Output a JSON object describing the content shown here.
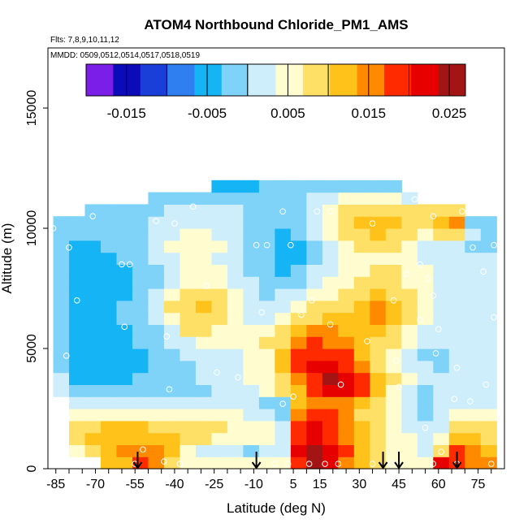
{
  "chart_data": {
    "type": "heatmap",
    "title": "ATOM4 Northbound Chloride_PM1_AMS",
    "flights_text": "Flts: 7,8,9,10,11,12",
    "dates_text": "MMDD: 0509,0512,0514,0517,0518,0519",
    "xlabel": "Latitude (deg N)",
    "ylabel": "Altitude (m)",
    "xlim": [
      -88,
      85
    ],
    "ylim": [
      0,
      17500
    ],
    "x_ticks": [
      "-85",
      "-70",
      "-55",
      "-40",
      "-25",
      "-10",
      "5",
      "15",
      "30",
      "45",
      "60",
      "75"
    ],
    "x_tick_values": [
      -85,
      -70,
      -55,
      -40,
      -25,
      -10,
      5,
      15,
      30,
      45,
      60,
      75
    ],
    "y_ticks": [
      "0",
      "5000",
      "10000",
      "15000"
    ],
    "y_tick_values": [
      0,
      5000,
      10000,
      15000
    ],
    "colorbar": {
      "ticks": [
        "-0.015",
        "-0.005",
        "0.005",
        "0.015",
        "0.025"
      ],
      "tick_values": [
        -0.015,
        -0.005,
        0.005,
        0.015,
        0.025
      ],
      "range": [
        -0.02,
        0.027
      ],
      "colors": [
        "#7B1FE8",
        "#0B0BB8",
        "#1A3FD8",
        "#2F7FF0",
        "#14B4F5",
        "#7FD2F8",
        "#CFEEFB",
        "#FFFDD0",
        "#FFE066",
        "#FFC21A",
        "#FF8A00",
        "#FF2A00",
        "#E60000",
        "#A31515"
      ]
    },
    "arrow_latitudes": [
      -54,
      -9,
      39,
      45,
      67
    ],
    "field_grid": {
      "lat_edges": [
        -86,
        -80,
        -74,
        -68,
        -62,
        -56,
        -50,
        -44,
        -38,
        -32,
        -26,
        -20,
        -14,
        -8,
        -2,
        4,
        10,
        16,
        22,
        28,
        34,
        40,
        46,
        52,
        58,
        64,
        70,
        76,
        82
      ],
      "alt_edges": [
        0,
        500,
        1000,
        1500,
        2000,
        2500,
        3000,
        3500,
        4000,
        4500,
        5000,
        5500,
        6000,
        6500,
        7000,
        7500,
        8000,
        8500,
        9000,
        9500,
        10000,
        10500,
        11000,
        11500,
        12000
      ],
      "values": [
        [
          null,
          null,
          null,
          0.011,
          0.013,
          0.017,
          0.015,
          0.007,
          0.005,
          0.005,
          0.004,
          0.004,
          0.004,
          0.005,
          0.004,
          0.02,
          0.024,
          0.021,
          0.016,
          0.011,
          0.007,
          0.006,
          0.006,
          0.005,
          0.022,
          0.019,
          0.015,
          0.014
        ],
        [
          null,
          0.004,
          0.01,
          0.013,
          0.014,
          0.016,
          0.015,
          0.011,
          0.004,
          0.002,
          0.001,
          0.001,
          0.0,
          0.002,
          0.003,
          0.021,
          0.025,
          0.022,
          0.017,
          0.012,
          0.008,
          0.005,
          0.005,
          0.003,
          0.007,
          0.017,
          0.014,
          0.013
        ],
        [
          null,
          0.009,
          0.012,
          0.013,
          0.013,
          0.013,
          0.012,
          0.012,
          0.009,
          0.007,
          0.006,
          0.006,
          0.006,
          0.005,
          0.002,
          0.019,
          0.022,
          0.02,
          0.016,
          0.012,
          0.008,
          0.005,
          0.004,
          0.002,
          0.005,
          0.013,
          0.012,
          0.01
        ],
        [
          null,
          0.008,
          0.01,
          0.011,
          0.011,
          0.011,
          0.01,
          0.01,
          0.01,
          0.008,
          0.007,
          0.006,
          0.005,
          0.004,
          0.001,
          0.018,
          0.021,
          0.019,
          0.015,
          0.011,
          0.007,
          0.005,
          0.003,
          0.001,
          0.003,
          0.009,
          0.009,
          0.007
        ],
        [
          null,
          0.004,
          0.004,
          0.004,
          0.004,
          0.004,
          0.004,
          0.004,
          0.004,
          0.004,
          0.004,
          0.004,
          0.003,
          0.002,
          0.0,
          0.015,
          0.019,
          0.017,
          0.014,
          0.01,
          0.007,
          0.004,
          0.002,
          0.0,
          0.002,
          0.005,
          0.005,
          0.005
        ],
        [
          null,
          0.002,
          0.002,
          0.002,
          0.002,
          0.002,
          0.002,
          0.003,
          0.003,
          0.003,
          0.003,
          0.003,
          0.002,
          0.0,
          -0.002,
          0.011,
          0.016,
          0.016,
          0.015,
          0.012,
          0.008,
          0.004,
          0.002,
          0.0,
          0.001,
          0.002,
          0.003,
          0.003
        ],
        [
          0.002,
          -0.002,
          -0.003,
          -0.003,
          -0.003,
          -0.002,
          -0.002,
          -0.001,
          -0.001,
          0.0,
          0.001,
          0.002,
          0.003,
          0.005,
          0.009,
          0.013,
          0.019,
          0.022,
          0.023,
          0.017,
          0.011,
          0.006,
          0.003,
          0.0,
          0.001,
          0.002,
          0.002,
          0.002
        ],
        [
          0.001,
          -0.004,
          -0.004,
          -0.004,
          -0.004,
          -0.003,
          -0.002,
          -0.001,
          0.0,
          0.001,
          0.002,
          0.003,
          0.004,
          0.006,
          0.01,
          0.015,
          0.02,
          0.024,
          0.023,
          0.018,
          0.012,
          0.007,
          0.004,
          0.001,
          0.001,
          0.002,
          0.002,
          0.002
        ],
        [
          0.0,
          -0.005,
          -0.005,
          -0.005,
          -0.005,
          -0.004,
          -0.003,
          -0.002,
          -0.001,
          0.001,
          0.002,
          0.003,
          0.004,
          0.006,
          0.011,
          0.017,
          0.021,
          0.022,
          0.02,
          0.015,
          0.01,
          0.006,
          0.003,
          0.001,
          0.0,
          0.001,
          0.002,
          0.002
        ],
        [
          0.0,
          -0.006,
          -0.006,
          -0.006,
          -0.005,
          -0.004,
          -0.002,
          0.0,
          0.002,
          0.003,
          0.003,
          0.003,
          0.004,
          0.006,
          0.012,
          0.017,
          0.019,
          0.019,
          0.017,
          0.013,
          0.009,
          0.006,
          0.003,
          0.0,
          0.0,
          0.001,
          0.001,
          0.002
        ],
        [
          0.0,
          -0.006,
          -0.006,
          -0.006,
          -0.005,
          -0.003,
          -0.001,
          0.001,
          0.003,
          0.004,
          0.004,
          0.004,
          0.005,
          0.007,
          0.01,
          0.015,
          0.017,
          0.016,
          0.014,
          0.012,
          0.009,
          0.007,
          0.004,
          0.001,
          0.001,
          0.001,
          0.001,
          0.002
        ],
        [
          0.0,
          -0.005,
          -0.005,
          -0.005,
          -0.004,
          -0.002,
          0.0,
          0.003,
          0.007,
          0.008,
          0.006,
          0.004,
          0.004,
          0.005,
          0.007,
          0.011,
          0.014,
          0.014,
          0.013,
          0.012,
          0.011,
          0.009,
          0.006,
          0.003,
          0.002,
          0.002,
          0.002,
          0.002
        ],
        [
          0.0,
          -0.005,
          -0.005,
          -0.005,
          -0.003,
          -0.001,
          0.002,
          0.006,
          0.009,
          0.01,
          0.009,
          0.006,
          0.003,
          0.003,
          0.005,
          0.008,
          0.01,
          0.011,
          0.012,
          0.013,
          0.014,
          0.012,
          0.009,
          0.004,
          0.003,
          0.002,
          0.002,
          0.002
        ],
        [
          0.0,
          -0.005,
          -0.005,
          -0.005,
          -0.003,
          -0.001,
          0.002,
          0.007,
          0.01,
          0.011,
          0.01,
          0.006,
          0.003,
          0.002,
          0.003,
          0.005,
          0.007,
          0.008,
          0.01,
          0.012,
          0.014,
          0.013,
          0.01,
          0.005,
          0.003,
          0.002,
          0.002,
          0.003
        ],
        [
          0.0,
          -0.005,
          -0.005,
          -0.005,
          -0.004,
          -0.002,
          0.001,
          0.004,
          0.007,
          0.008,
          0.007,
          0.005,
          0.002,
          0.0,
          0.001,
          0.002,
          0.004,
          0.006,
          0.008,
          0.01,
          0.011,
          0.01,
          0.008,
          0.004,
          0.003,
          0.002,
          0.002,
          0.002
        ],
        [
          0.0,
          -0.006,
          -0.006,
          -0.005,
          -0.004,
          -0.002,
          0.0,
          0.003,
          0.005,
          0.006,
          0.005,
          0.003,
          0.001,
          -0.001,
          -0.003,
          -0.001,
          0.002,
          0.004,
          0.006,
          0.007,
          0.008,
          0.008,
          0.006,
          0.004,
          0.003,
          0.002,
          0.002,
          0.002
        ],
        [
          0.0,
          -0.006,
          -0.006,
          -0.005,
          -0.004,
          -0.002,
          0.0,
          0.002,
          0.004,
          0.005,
          0.004,
          0.002,
          0.0,
          -0.002,
          -0.005,
          -0.003,
          0.001,
          0.003,
          0.005,
          0.006,
          0.007,
          0.007,
          0.005,
          0.004,
          0.002,
          0.002,
          0.002,
          0.002
        ],
        [
          0.0,
          -0.005,
          -0.005,
          -0.004,
          -0.003,
          -0.001,
          0.001,
          0.003,
          0.004,
          0.004,
          0.003,
          0.001,
          -0.001,
          -0.003,
          -0.006,
          -0.004,
          0.0,
          0.003,
          0.005,
          0.006,
          0.006,
          0.006,
          0.004,
          0.003,
          0.002,
          0.001,
          0.001,
          0.001
        ],
        [
          0.0,
          -0.004,
          -0.004,
          -0.003,
          -0.002,
          0.0,
          0.002,
          0.004,
          0.005,
          0.005,
          0.004,
          0.002,
          0.0,
          -0.003,
          -0.006,
          -0.004,
          0.0,
          0.003,
          0.006,
          0.008,
          0.009,
          0.008,
          0.005,
          0.003,
          0.002,
          0.001,
          0.0,
          -0.001
        ],
        [
          0.0,
          -0.003,
          -0.003,
          -0.002,
          -0.001,
          0.0,
          0.002,
          0.003,
          0.004,
          0.004,
          0.003,
          0.002,
          0.0,
          -0.002,
          -0.005,
          -0.003,
          0.001,
          0.004,
          0.007,
          0.01,
          0.011,
          0.01,
          0.007,
          0.005,
          0.007,
          0.009,
          0.001,
          -0.002
        ],
        [
          0.0,
          -0.002,
          -0.002,
          -0.002,
          -0.001,
          0.0,
          0.001,
          0.002,
          0.003,
          0.003,
          0.002,
          0.001,
          0.0,
          -0.001,
          -0.003,
          -0.002,
          0.001,
          0.004,
          0.008,
          0.011,
          0.012,
          0.011,
          0.009,
          0.008,
          0.012,
          0.014,
          0.0,
          -0.002
        ],
        [
          null,
          null,
          -0.002,
          -0.002,
          -0.001,
          0.0,
          0.0,
          0.001,
          0.001,
          0.001,
          0.001,
          0.001,
          0.0,
          0.0,
          -0.001,
          0.0,
          0.002,
          0.004,
          0.008,
          0.01,
          0.01,
          0.009,
          0.008,
          0.007,
          0.009,
          0.01,
          null,
          null
        ],
        [
          null,
          null,
          null,
          null,
          null,
          null,
          -0.002,
          -0.002,
          -0.002,
          -0.002,
          -0.001,
          -0.001,
          -0.001,
          -0.001,
          -0.001,
          0.0,
          0.001,
          0.002,
          0.004,
          0.005,
          0.005,
          0.004,
          0.003,
          null,
          null,
          null,
          null,
          null
        ],
        [
          null,
          null,
          null,
          null,
          null,
          null,
          null,
          null,
          null,
          null,
          -0.004,
          -0.004,
          -0.004,
          -0.003,
          -0.003,
          -0.003,
          -0.002,
          -0.002,
          -0.001,
          -0.001,
          -0.001,
          -0.001,
          null,
          null,
          null,
          null,
          null,
          null
        ]
      ]
    },
    "observations": [
      {
        "x": -86,
        "y": 10000
      },
      {
        "x": -80,
        "y": 9200
      },
      {
        "x": -77,
        "y": 7000
      },
      {
        "x": -81,
        "y": 4700
      },
      {
        "x": -81,
        "y": 2800
      },
      {
        "x": -71,
        "y": 10500
      },
      {
        "x": -60,
        "y": 8500
      },
      {
        "x": -57,
        "y": 8500
      },
      {
        "x": -59,
        "y": 5900
      },
      {
        "x": -47,
        "y": 10300
      },
      {
        "x": -40,
        "y": 10200
      },
      {
        "x": -33,
        "y": 10900
      },
      {
        "x": -28,
        "y": 7600
      },
      {
        "x": -24,
        "y": 4000
      },
      {
        "x": -16,
        "y": 3800
      },
      {
        "x": -43,
        "y": 5500
      },
      {
        "x": -42,
        "y": 3300
      },
      {
        "x": -52,
        "y": 800
      },
      {
        "x": -44,
        "y": 300
      },
      {
        "x": -9,
        "y": 9300
      },
      {
        "x": -5,
        "y": 9300
      },
      {
        "x": -7,
        "y": 6500
      },
      {
        "x": 1,
        "y": 10700
      },
      {
        "x": 4,
        "y": 9300
      },
      {
        "x": 8,
        "y": 6400
      },
      {
        "x": 14,
        "y": 10700
      },
      {
        "x": 19,
        "y": 10700
      },
      {
        "x": 12,
        "y": 7000
      },
      {
        "x": 1,
        "y": 2700
      },
      {
        "x": 5,
        "y": 3000
      },
      {
        "x": 19,
        "y": 6000
      },
      {
        "x": 23,
        "y": 3500
      },
      {
        "x": 33,
        "y": 5300
      },
      {
        "x": 43,
        "y": 7000
      },
      {
        "x": 48,
        "y": 8100
      },
      {
        "x": 45,
        "y": 3400
      },
      {
        "x": 44,
        "y": 4500
      },
      {
        "x": 35,
        "y": 10200
      },
      {
        "x": 51,
        "y": 11200
      },
      {
        "x": 58,
        "y": 10500
      },
      {
        "x": 53,
        "y": 8500
      },
      {
        "x": 56,
        "y": 7900
      },
      {
        "x": 58,
        "y": 7200
      },
      {
        "x": 53,
        "y": 6200
      },
      {
        "x": 59,
        "y": 4800
      },
      {
        "x": 60,
        "y": 5800
      },
      {
        "x": 67,
        "y": 4200
      },
      {
        "x": 69,
        "y": 10700
      },
      {
        "x": 73,
        "y": 9200
      },
      {
        "x": 77,
        "y": 8200
      },
      {
        "x": 81,
        "y": 9300
      },
      {
        "x": 81,
        "y": 6300
      },
      {
        "x": 78,
        "y": 3500
      },
      {
        "x": 72,
        "y": 2800
      },
      {
        "x": 66,
        "y": 2900
      },
      {
        "x": 55,
        "y": 1700
      },
      {
        "x": 61,
        "y": 700
      },
      {
        "x": 67,
        "y": 200
      },
      {
        "x": 80,
        "y": 200
      },
      {
        "x": 11,
        "y": 200
      },
      {
        "x": 17,
        "y": 200
      },
      {
        "x": 22,
        "y": 200
      },
      {
        "x": 35,
        "y": 200
      },
      {
        "x": 42,
        "y": 200
      },
      {
        "x": 58,
        "y": 200
      },
      {
        "x": -55,
        "y": 200
      },
      {
        "x": -38,
        "y": 200
      },
      {
        "x": -2,
        "y": 200
      },
      {
        "x": 3,
        "y": 200
      }
    ]
  }
}
